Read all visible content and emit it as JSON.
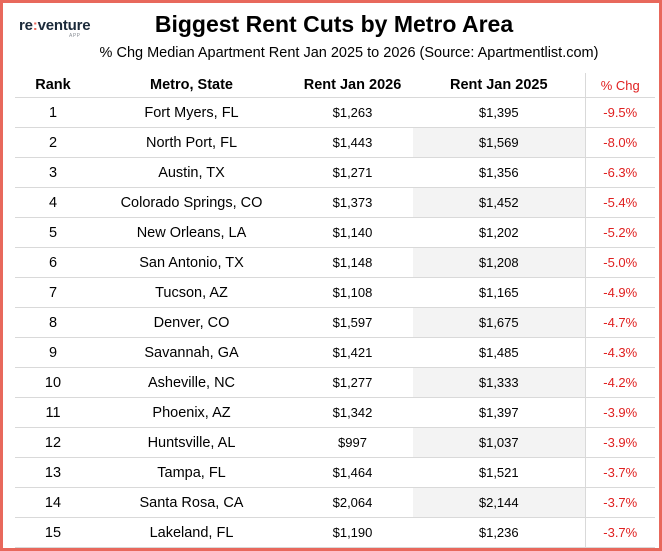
{
  "brand": {
    "name_left": "re",
    "name_colon": ":",
    "name_right": "venture",
    "tag": "APP"
  },
  "title": "Biggest Rent Cuts by Metro Area",
  "subtitle": "% Chg Median Apartment Rent Jan 2025 to 2026 (Source: Apartmentlist.com)",
  "colors": {
    "border": "#e8685c",
    "negative": "#e02020",
    "shade": "#f3f3f3"
  },
  "table": {
    "headers": {
      "rank": "Rank",
      "metro": "Metro, State",
      "rent_2026": "Rent Jan 2026",
      "rent_2025": "Rent Jan 2025",
      "pct": "% Chg"
    },
    "rows": [
      {
        "rank": "1",
        "metro": "Fort Myers, FL",
        "rent_2026": "$1,263",
        "rent_2025": "$1,395",
        "pct": "-9.5%"
      },
      {
        "rank": "2",
        "metro": "North Port, FL",
        "rent_2026": "$1,443",
        "rent_2025": "$1,569",
        "pct": "-8.0%"
      },
      {
        "rank": "3",
        "metro": "Austin, TX",
        "rent_2026": "$1,271",
        "rent_2025": "$1,356",
        "pct": "-6.3%"
      },
      {
        "rank": "4",
        "metro": "Colorado Springs, CO",
        "rent_2026": "$1,373",
        "rent_2025": "$1,452",
        "pct": "-5.4%"
      },
      {
        "rank": "5",
        "metro": "New Orleans, LA",
        "rent_2026": "$1,140",
        "rent_2025": "$1,202",
        "pct": "-5.2%"
      },
      {
        "rank": "6",
        "metro": "San Antonio, TX",
        "rent_2026": "$1,148",
        "rent_2025": "$1,208",
        "pct": "-5.0%"
      },
      {
        "rank": "7",
        "metro": "Tucson, AZ",
        "rent_2026": "$1,108",
        "rent_2025": "$1,165",
        "pct": "-4.9%"
      },
      {
        "rank": "8",
        "metro": "Denver, CO",
        "rent_2026": "$1,597",
        "rent_2025": "$1,675",
        "pct": "-4.7%"
      },
      {
        "rank": "9",
        "metro": "Savannah, GA",
        "rent_2026": "$1,421",
        "rent_2025": "$1,485",
        "pct": "-4.3%"
      },
      {
        "rank": "10",
        "metro": "Asheville, NC",
        "rent_2026": "$1,277",
        "rent_2025": "$1,333",
        "pct": "-4.2%"
      },
      {
        "rank": "11",
        "metro": "Phoenix, AZ",
        "rent_2026": "$1,342",
        "rent_2025": "$1,397",
        "pct": "-3.9%"
      },
      {
        "rank": "12",
        "metro": "Huntsville, AL",
        "rent_2026": "$997",
        "rent_2025": "$1,037",
        "pct": "-3.9%"
      },
      {
        "rank": "13",
        "metro": "Tampa, FL",
        "rent_2026": "$1,464",
        "rent_2025": "$1,521",
        "pct": "-3.7%"
      },
      {
        "rank": "14",
        "metro": "Santa Rosa, CA",
        "rent_2026": "$2,064",
        "rent_2025": "$2,144",
        "pct": "-3.7%"
      },
      {
        "rank": "15",
        "metro": "Lakeland, FL",
        "rent_2026": "$1,190",
        "rent_2025": "$1,236",
        "pct": "-3.7%"
      }
    ]
  }
}
